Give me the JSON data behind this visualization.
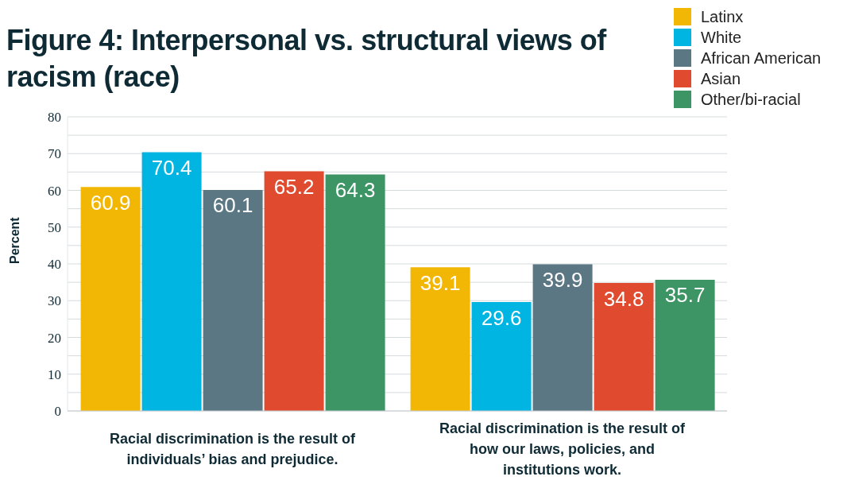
{
  "chart_data": {
    "type": "bar",
    "title": "Figure 4: Interpersonal vs. structural views of racism (race)",
    "ylabel": "Percent",
    "categories": [
      "Racial discrimination is the result of individuals’ bias and prejudice.",
      "Racial discrimination is the result of how our laws, policies, and institutions work."
    ],
    "series": [
      {
        "name": "Latinx",
        "color": "#f2b705",
        "values": [
          60.9,
          39.1
        ]
      },
      {
        "name": "White",
        "color": "#00b5e2",
        "values": [
          70.4,
          29.6
        ]
      },
      {
        "name": "African American",
        "color": "#5b7784",
        "values": [
          60.1,
          39.9
        ]
      },
      {
        "name": "Asian",
        "color": "#e04a2f",
        "values": [
          65.2,
          34.8
        ]
      },
      {
        "name": "Other/bi-racial",
        "color": "#3d9464",
        "values": [
          64.3,
          35.7
        ]
      }
    ],
    "ylim": [
      0,
      80
    ],
    "yticks": [
      0,
      {
        "value": 5,
        "label": null
      },
      10,
      {
        "value": 15,
        "label": null
      },
      20,
      {
        "value": 25,
        "label": null
      },
      30,
      {
        "value": 35,
        "label": null
      },
      40,
      {
        "value": 45,
        "label": null
      },
      50,
      {
        "value": 55,
        "label": null
      },
      60,
      {
        "value": 65,
        "label": null
      },
      70,
      {
        "value": 75,
        "label": null
      },
      80
    ],
    "grid": "y",
    "legend": "top right",
    "data_labels": true
  }
}
